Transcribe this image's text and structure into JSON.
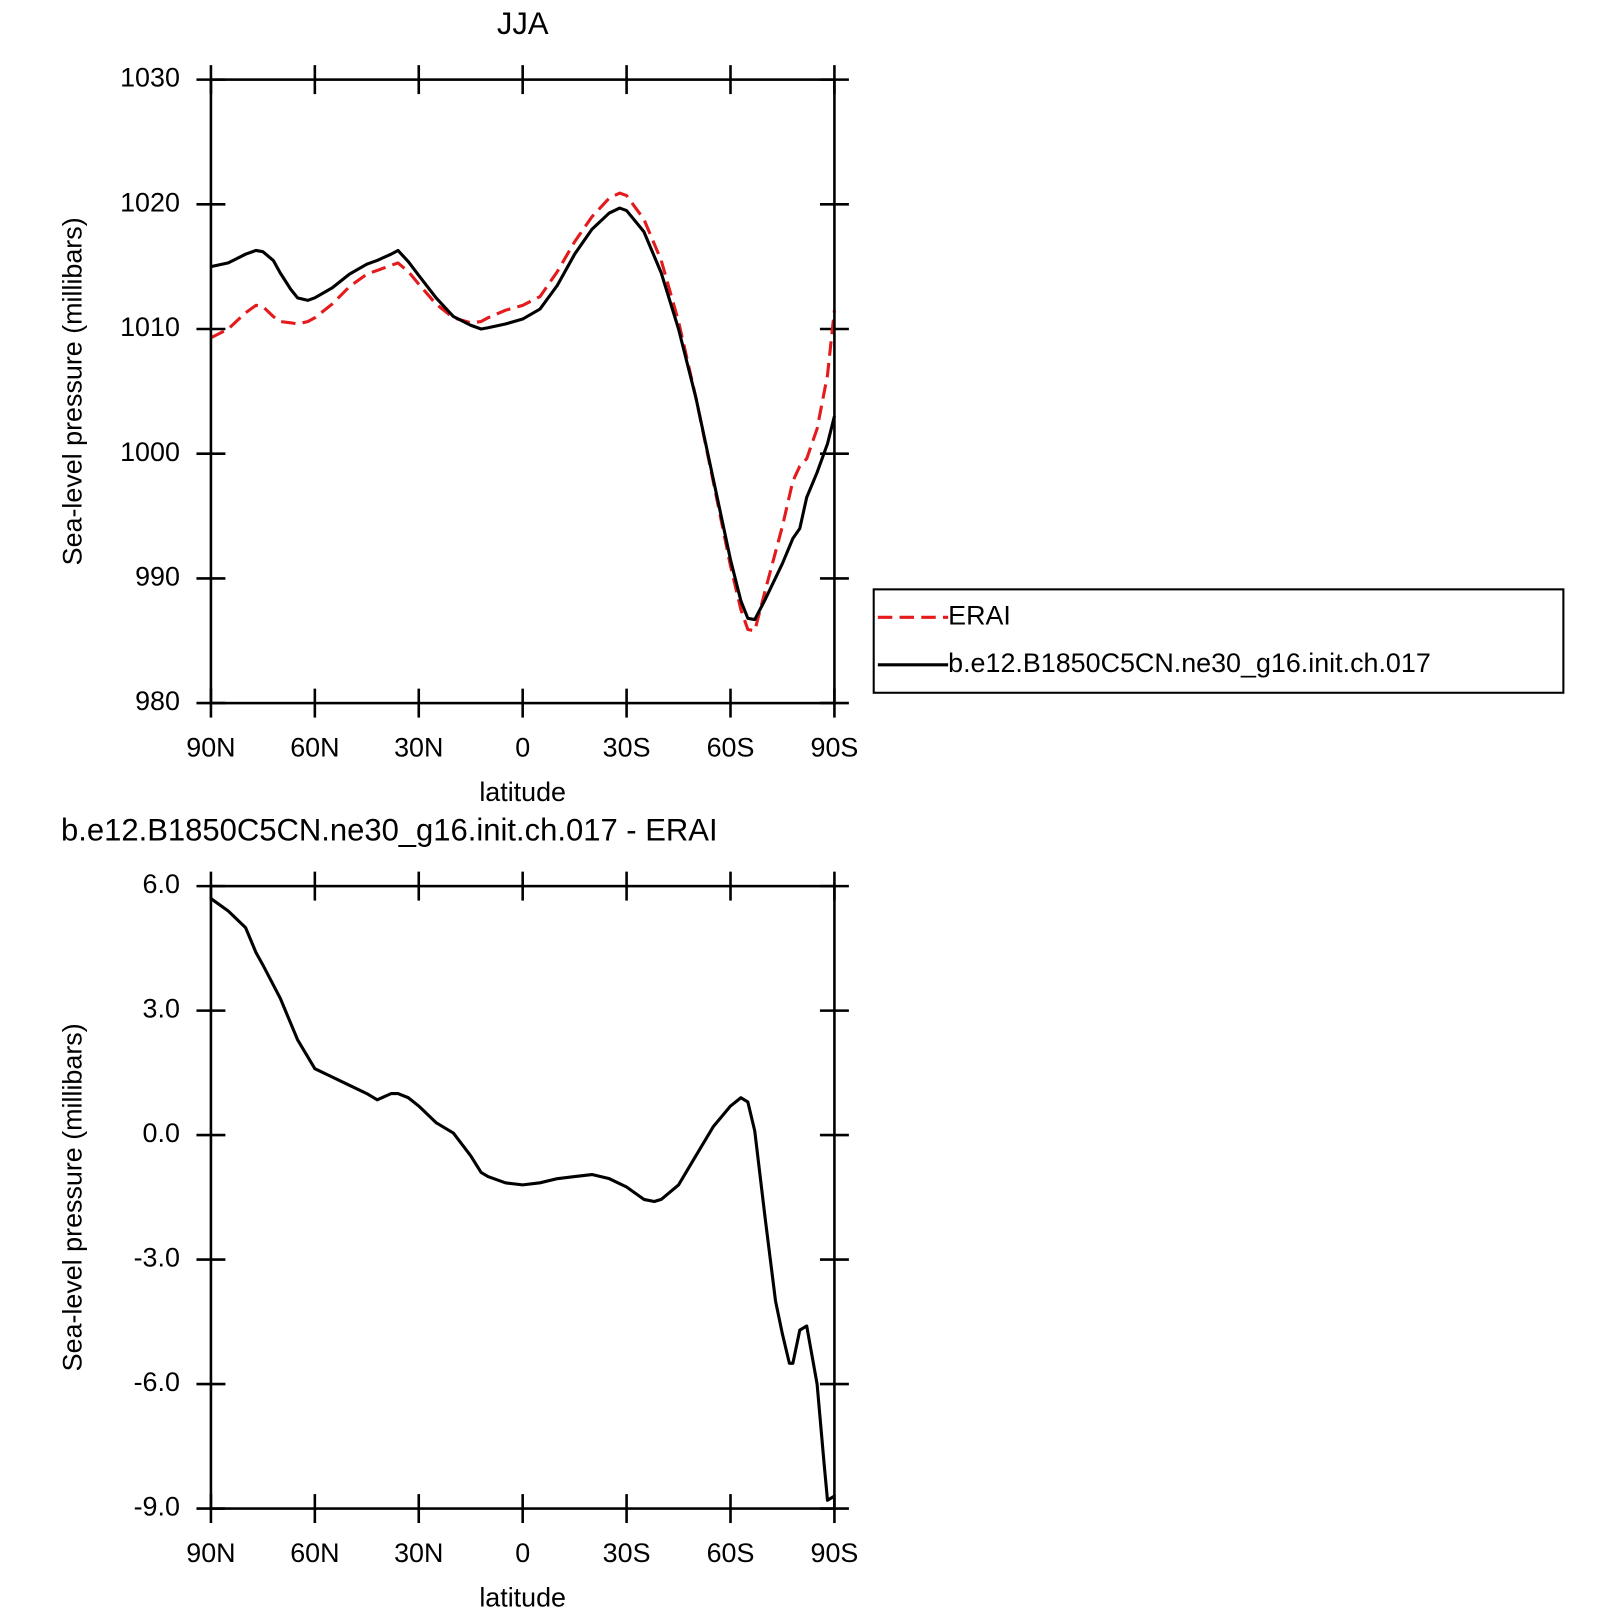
{
  "chart_data": [
    {
      "type": "line",
      "title": "JJA",
      "xlabel": "latitude",
      "ylabel": "Sea-level pressure (millibars)",
      "x": [
        90,
        85,
        80,
        77,
        75,
        72,
        70,
        67,
        65,
        62,
        60,
        55,
        50,
        45,
        42,
        38,
        36,
        33,
        30,
        25,
        20,
        15,
        12,
        10,
        5,
        0,
        -5,
        -10,
        -15,
        -20,
        -25,
        -28,
        -30,
        -35,
        -40,
        -45,
        -50,
        -55,
        -60,
        -63,
        -65,
        -67,
        -70,
        -75,
        -78,
        -80,
        -82,
        -85,
        -88,
        -90
      ],
      "series": [
        {
          "name": "ERAI",
          "color": "#e41a1c",
          "line_style": "dashed",
          "values": [
            1009.3,
            1010,
            1011.3,
            1011.9,
            1011.8,
            1011,
            1010.6,
            1010.5,
            1010.4,
            1010.6,
            1010.9,
            1012,
            1013.4,
            1014.4,
            1014.7,
            1015.1,
            1015.3,
            1014.6,
            1013.6,
            1012,
            1010.9,
            1010.5,
            1010.6,
            1010.9,
            1011.5,
            1011.9,
            1012.6,
            1014.6,
            1017,
            1019,
            1020.5,
            1020.9,
            1020.7,
            1018.8,
            1015.5,
            1010.6,
            1004.5,
            997.8,
            991,
            987.5,
            985.9,
            985.8,
            989,
            994.2,
            997.8,
            999,
            999.6,
            1002,
            1006.3,
            1011.5
          ]
        },
        {
          "name": "b.e12.B1850C5CN.ne30_g16.init.ch.017",
          "color": "#000000",
          "line_style": "solid",
          "values": [
            1015,
            1015.3,
            1016,
            1016.3,
            1016.2,
            1015.5,
            1014.5,
            1013.2,
            1012.5,
            1012.3,
            1012.5,
            1013.3,
            1014.4,
            1015.2,
            1015.5,
            1016,
            1016.3,
            1015.4,
            1014.3,
            1012.5,
            1011,
            1010.3,
            1010,
            1010.1,
            1010.4,
            1010.8,
            1011.6,
            1013.5,
            1016,
            1018,
            1019.3,
            1019.7,
            1019.5,
            1017.8,
            1014.5,
            1010,
            1004.5,
            998,
            991.5,
            988.2,
            986.8,
            986.7,
            988.3,
            991.2,
            993.2,
            994,
            996.5,
            998.5,
            1000.8,
            1003
          ]
        }
      ],
      "xlim": [
        90,
        -90
      ],
      "xticks": [
        {
          "value": 90,
          "label": "90N"
        },
        {
          "value": 60,
          "label": "60N"
        },
        {
          "value": 30,
          "label": "30N"
        },
        0,
        {
          "value": -30,
          "label": "30S"
        },
        {
          "value": -60,
          "label": "60S"
        },
        {
          "value": -90,
          "label": "90S"
        }
      ],
      "ylim": [
        980,
        1030
      ],
      "yticks": [
        980,
        990,
        1000,
        1010,
        1020,
        1030
      ],
      "legend": "right"
    },
    {
      "type": "line",
      "title": "b.e12.B1850C5CN.ne30_g16.init.ch.017 - ERAI",
      "xlabel": "latitude",
      "ylabel": "Sea-level pressure (millibars)",
      "x": [
        90,
        85,
        80,
        77,
        75,
        70,
        65,
        60,
        55,
        50,
        45,
        42,
        38,
        36,
        33,
        30,
        25,
        20,
        15,
        12,
        10,
        5,
        0,
        -5,
        -10,
        -15,
        -20,
        -25,
        -30,
        -35,
        -38,
        -40,
        -45,
        -50,
        -55,
        -60,
        -63,
        -65,
        -67,
        -70,
        -73,
        -75,
        -77,
        -78,
        -80,
        -82,
        -85,
        -87,
        -88,
        -90
      ],
      "series": [
        {
          "color": "#000000",
          "line_style": "solid",
          "values": [
            5.7,
            5.4,
            5.0,
            4.4,
            4.1,
            3.3,
            2.3,
            1.6,
            1.4,
            1.2,
            1.0,
            0.85,
            1.0,
            1.0,
            0.9,
            0.7,
            0.3,
            0.05,
            -0.5,
            -0.9,
            -1.0,
            -1.15,
            -1.2,
            -1.15,
            -1.05,
            -1.0,
            -0.95,
            -1.05,
            -1.25,
            -1.55,
            -1.6,
            -1.55,
            -1.2,
            -0.5,
            0.2,
            0.7,
            0.9,
            0.8,
            0.1,
            -2.0,
            -4.0,
            -4.8,
            -5.5,
            -5.5,
            -4.7,
            -4.6,
            -6.0,
            -7.9,
            -8.8,
            -8.7
          ]
        }
      ],
      "xlim": [
        90,
        -90
      ],
      "xticks": [
        {
          "value": 90,
          "label": "90N"
        },
        {
          "value": 60,
          "label": "60N"
        },
        {
          "value": 30,
          "label": "30N"
        },
        0,
        {
          "value": -30,
          "label": "30S"
        },
        {
          "value": -60,
          "label": "60S"
        },
        {
          "value": -90,
          "label": "90S"
        }
      ],
      "ylim": [
        -9,
        6
      ],
      "yticks": [
        {
          "value": -9,
          "label": "-9.0"
        },
        {
          "value": -6,
          "label": "-6.0"
        },
        {
          "value": -3,
          "label": "-3.0"
        },
        {
          "value": 0,
          "label": "0.0"
        },
        {
          "value": 3,
          "label": "3.0"
        },
        {
          "value": 6,
          "label": "6.0"
        }
      ]
    }
  ]
}
